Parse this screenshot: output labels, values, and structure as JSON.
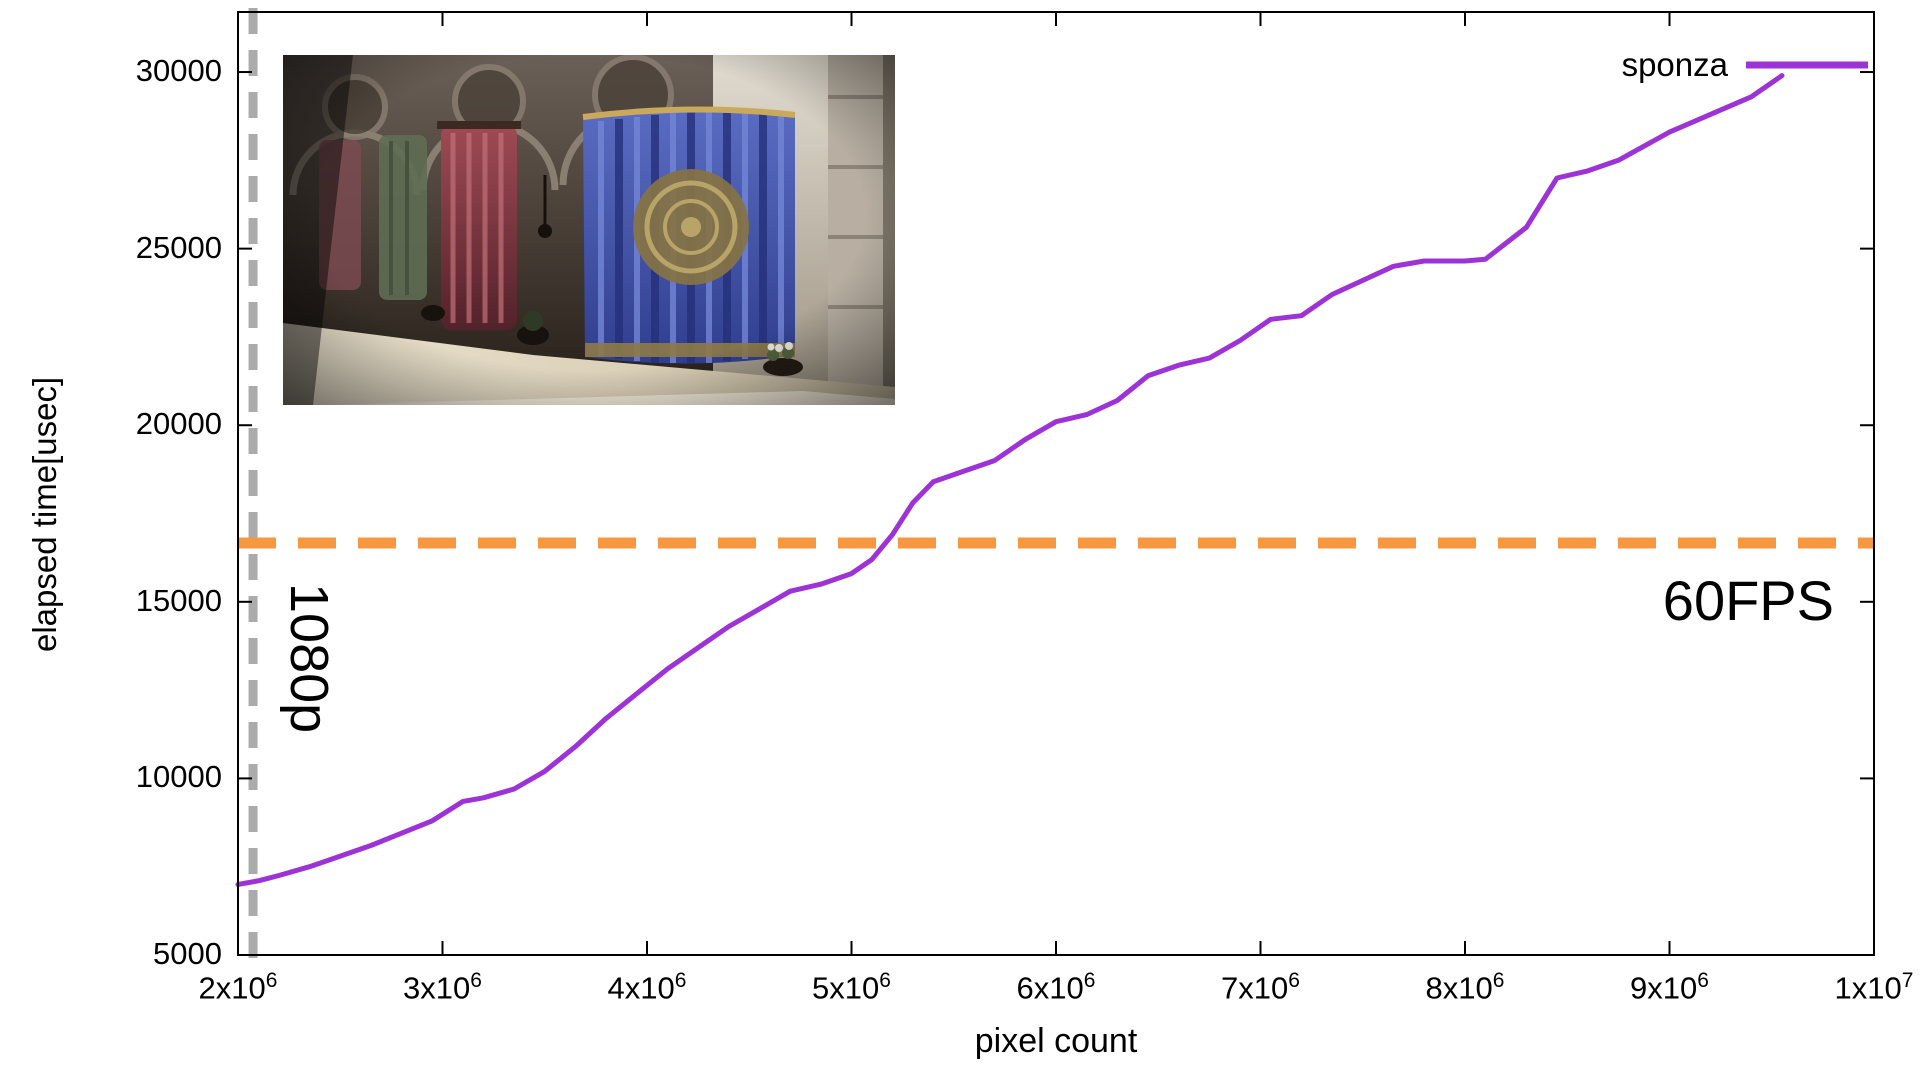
{
  "chart_data": {
    "type": "line",
    "title": "",
    "xlabel": "pixel count",
    "ylabel": "elapsed time[usec]",
    "xlim": [
      2000000,
      10000000
    ],
    "ylim": [
      5000,
      31700
    ],
    "grid": false,
    "legend_position": "top-right",
    "x_ticks": [
      {
        "value": 2000000,
        "base": "2x10",
        "exp": "6"
      },
      {
        "value": 3000000,
        "base": "3x10",
        "exp": "6"
      },
      {
        "value": 4000000,
        "base": "4x10",
        "exp": "6"
      },
      {
        "value": 5000000,
        "base": "5x10",
        "exp": "6"
      },
      {
        "value": 6000000,
        "base": "6x10",
        "exp": "6"
      },
      {
        "value": 7000000,
        "base": "7x10",
        "exp": "6"
      },
      {
        "value": 8000000,
        "base": "8x10",
        "exp": "6"
      },
      {
        "value": 9000000,
        "base": "9x10",
        "exp": "6"
      },
      {
        "value": 10000000,
        "base": "1x10",
        "exp": "7"
      }
    ],
    "y_ticks": [
      {
        "value": 5000,
        "label": "5000"
      },
      {
        "value": 10000,
        "label": "10000"
      },
      {
        "value": 15000,
        "label": "15000"
      },
      {
        "value": 20000,
        "label": "20000"
      },
      {
        "value": 25000,
        "label": "25000"
      },
      {
        "value": 30000,
        "label": "30000"
      }
    ],
    "series": [
      {
        "name": "sponza",
        "color": "#9d33d6",
        "x": [
          2000000,
          2100000,
          2200000,
          2350000,
          2500000,
          2650000,
          2800000,
          2950000,
          3100000,
          3200000,
          3350000,
          3500000,
          3650000,
          3800000,
          3950000,
          4100000,
          4250000,
          4400000,
          4550000,
          4700000,
          4850000,
          5000000,
          5100000,
          5200000,
          5300000,
          5400000,
          5550000,
          5700000,
          5850000,
          6000000,
          6150000,
          6300000,
          6450000,
          6600000,
          6750000,
          6900000,
          7050000,
          7200000,
          7350000,
          7500000,
          7650000,
          7800000,
          8000000,
          8100000,
          8300000,
          8450000,
          8600000,
          8750000,
          9000000,
          9200000,
          9400000,
          9550000
        ],
        "y": [
          7000,
          7100,
          7250,
          7500,
          7800,
          8100,
          8450,
          8800,
          9350,
          9450,
          9700,
          10200,
          10900,
          11700,
          12400,
          13100,
          13700,
          14300,
          14800,
          15300,
          15500,
          15800,
          16200,
          16900,
          17800,
          18400,
          18700,
          19000,
          19600,
          20100,
          20300,
          20700,
          21400,
          21700,
          21900,
          22400,
          23000,
          23100,
          23700,
          24100,
          24500,
          24650,
          24650,
          24700,
          25600,
          27000,
          27200,
          27500,
          28300,
          28800,
          29300,
          29900
        ]
      }
    ],
    "annotations": {
      "hline": {
        "value": 16666.7,
        "label": "60FPS",
        "color": "#f7973f",
        "style": "dashed"
      },
      "vline": {
        "value": 2073600,
        "label": "1080p",
        "color": "#ababab",
        "style": "dashed"
      }
    },
    "legend": {
      "entries": [
        {
          "label": "sponza",
          "color": "#9d33d6"
        }
      ]
    },
    "inset": {
      "description": "sponza scene render",
      "position": "top-left"
    }
  },
  "colors": {
    "frame": "#000000",
    "background": "#ffffff",
    "series_purple": "#9d33d6",
    "fps_orange": "#f7973f",
    "res_gray": "#ababab"
  }
}
